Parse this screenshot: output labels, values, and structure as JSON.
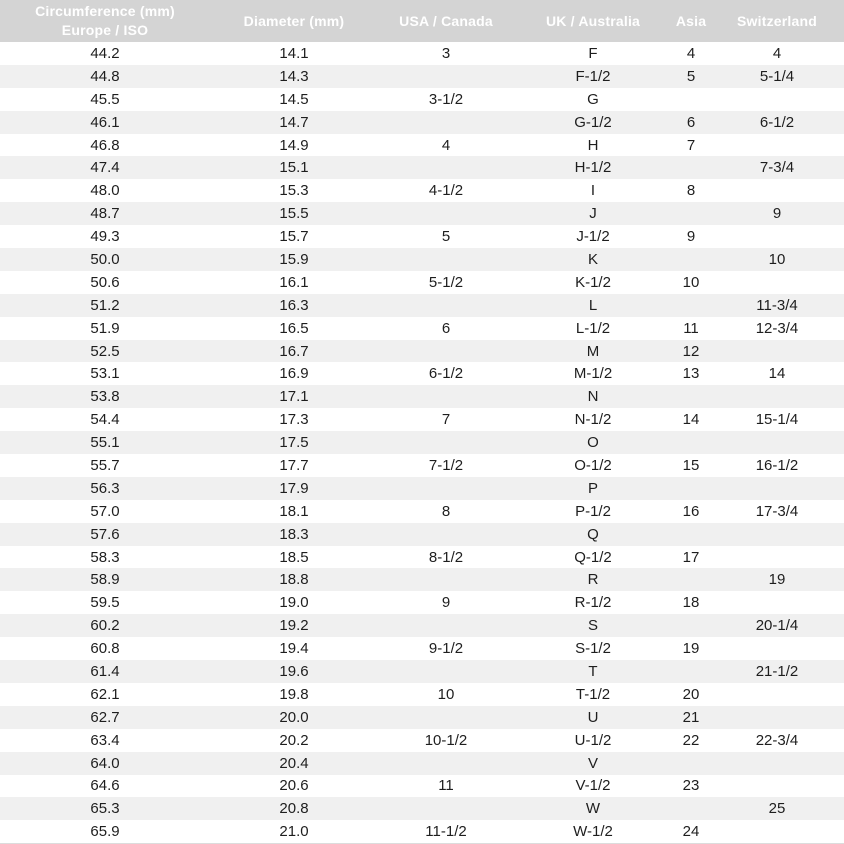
{
  "table": {
    "title": "ring-size-conversion-chart",
    "columns": [
      {
        "label_line1": "Circumference (mm)",
        "label_line2": "Europe / ISO"
      },
      {
        "label": "Diameter (mm)"
      },
      {
        "label": "USA / Canada"
      },
      {
        "label": "UK / Australia"
      },
      {
        "label": "Asia"
      },
      {
        "label": "Switzerland"
      }
    ],
    "rows": [
      [
        "44.2",
        "14.1",
        "3",
        "F",
        "4",
        "4"
      ],
      [
        "44.8",
        "14.3",
        "",
        "F-1/2",
        "5",
        "5-1/4"
      ],
      [
        "45.5",
        "14.5",
        "3-1/2",
        "G",
        "",
        ""
      ],
      [
        "46.1",
        "14.7",
        "",
        "G-1/2",
        "6",
        "6-1/2"
      ],
      [
        "46.8",
        "14.9",
        "4",
        "H",
        "7",
        ""
      ],
      [
        "47.4",
        "15.1",
        "",
        "H-1/2",
        "",
        "7-3/4"
      ],
      [
        "48.0",
        "15.3",
        "4-1/2",
        "I",
        "8",
        ""
      ],
      [
        "48.7",
        "15.5",
        "",
        "J",
        "",
        "9"
      ],
      [
        "49.3",
        "15.7",
        "5",
        "J-1/2",
        "9",
        ""
      ],
      [
        "50.0",
        "15.9",
        "",
        "K",
        "",
        "10"
      ],
      [
        "50.6",
        "16.1",
        "5-1/2",
        "K-1/2",
        "10",
        ""
      ],
      [
        "51.2",
        "16.3",
        "",
        "L",
        "",
        "11-3/4"
      ],
      [
        "51.9",
        "16.5",
        "6",
        "L-1/2",
        "11",
        "12-3/4"
      ],
      [
        "52.5",
        "16.7",
        "",
        "M",
        "12",
        ""
      ],
      [
        "53.1",
        "16.9",
        "6-1/2",
        "M-1/2",
        "13",
        "14"
      ],
      [
        "53.8",
        "17.1",
        "",
        "N",
        "",
        ""
      ],
      [
        "54.4",
        "17.3",
        "7",
        "N-1/2",
        "14",
        "15-1/4"
      ],
      [
        "55.1",
        "17.5",
        "",
        "O",
        "",
        ""
      ],
      [
        "55.7",
        "17.7",
        "7-1/2",
        "O-1/2",
        "15",
        "16-1/2"
      ],
      [
        "56.3",
        "17.9",
        "",
        "P",
        "",
        ""
      ],
      [
        "57.0",
        "18.1",
        "8",
        "P-1/2",
        "16",
        "17-3/4"
      ],
      [
        "57.6",
        "18.3",
        "",
        "Q",
        "",
        ""
      ],
      [
        "58.3",
        "18.5",
        "8-1/2",
        "Q-1/2",
        "17",
        ""
      ],
      [
        "58.9",
        "18.8",
        "",
        "R",
        "",
        "19"
      ],
      [
        "59.5",
        "19.0",
        "9",
        "R-1/2",
        "18",
        ""
      ],
      [
        "60.2",
        "19.2",
        "",
        "S",
        "",
        "20-1/4"
      ],
      [
        "60.8",
        "19.4",
        "9-1/2",
        "S-1/2",
        "19",
        ""
      ],
      [
        "61.4",
        "19.6",
        "",
        "T",
        "",
        "21-1/2"
      ],
      [
        "62.1",
        "19.8",
        "10",
        "T-1/2",
        "20",
        ""
      ],
      [
        "62.7",
        "20.0",
        "",
        "U",
        "21",
        ""
      ],
      [
        "63.4",
        "20.2",
        "10-1/2",
        "U-1/2",
        "22",
        "22-3/4"
      ],
      [
        "64.0",
        "20.4",
        "",
        "V",
        "",
        ""
      ],
      [
        "64.6",
        "20.6",
        "11",
        "V-1/2",
        "23",
        ""
      ],
      [
        "65.3",
        "20.8",
        "",
        "W",
        "",
        "25"
      ],
      [
        "65.9",
        "21.0",
        "11-1/2",
        "W-1/2",
        "24",
        ""
      ]
    ]
  },
  "colors": {
    "header_bg": "#d4d4d4",
    "header_text": "#ffffff",
    "row_bg": "#ffffff",
    "stripe_bg": "#f0f0f0",
    "body_text": "#1e1e1e",
    "bottom_border": "#dcdcdc"
  }
}
